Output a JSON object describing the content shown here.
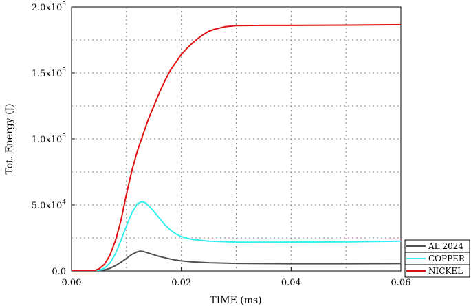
{
  "chart_data": {
    "type": "line",
    "xlabel": "TIME (ms)",
    "ylabel": "Tot. Energy (J)",
    "xlim": [
      0,
      0.06
    ],
    "ylim": [
      0,
      200000
    ],
    "grid": true,
    "legend_position": "bottom-right",
    "x_ticks": [
      {
        "value": 0,
        "label": "0.00"
      },
      {
        "value": 0.02,
        "label": "0.02"
      },
      {
        "value": 0.04,
        "label": "0.04"
      },
      {
        "value": 0.06,
        "label": "0.06"
      }
    ],
    "y_ticks": [
      {
        "value": 0,
        "label": "0.0",
        "exp": ""
      },
      {
        "value": 50000,
        "label": "5.0x10",
        "exp": "4"
      },
      {
        "value": 100000,
        "label": "1.0x10",
        "exp": "5"
      },
      {
        "value": 150000,
        "label": "1.5x10",
        "exp": "5"
      },
      {
        "value": 200000,
        "label": "2.0x10",
        "exp": "5"
      }
    ],
    "series": [
      {
        "name": "AL 2024",
        "color": "#505050",
        "points": [
          [
            0,
            0
          ],
          [
            0.004,
            0
          ],
          [
            0.005,
            200
          ],
          [
            0.006,
            800
          ],
          [
            0.007,
            2000
          ],
          [
            0.008,
            4000
          ],
          [
            0.009,
            6500
          ],
          [
            0.01,
            9500
          ],
          [
            0.011,
            12500
          ],
          [
            0.012,
            14500
          ],
          [
            0.0125,
            15000
          ],
          [
            0.013,
            14800
          ],
          [
            0.014,
            13500
          ],
          [
            0.015,
            12200
          ],
          [
            0.016,
            11000
          ],
          [
            0.017,
            10000
          ],
          [
            0.018,
            9000
          ],
          [
            0.019,
            8200
          ],
          [
            0.02,
            7600
          ],
          [
            0.022,
            6800
          ],
          [
            0.025,
            6200
          ],
          [
            0.03,
            5700
          ],
          [
            0.04,
            5400
          ],
          [
            0.05,
            5400
          ],
          [
            0.06,
            5500
          ]
        ]
      },
      {
        "name": "COPPER",
        "color": "#33f0f0",
        "points": [
          [
            0,
            0
          ],
          [
            0.004,
            0
          ],
          [
            0.005,
            500
          ],
          [
            0.006,
            2000
          ],
          [
            0.007,
            6000
          ],
          [
            0.008,
            13000
          ],
          [
            0.009,
            23000
          ],
          [
            0.01,
            34000
          ],
          [
            0.011,
            44000
          ],
          [
            0.012,
            51000
          ],
          [
            0.0128,
            52500
          ],
          [
            0.0135,
            51500
          ],
          [
            0.014,
            49500
          ],
          [
            0.015,
            45000
          ],
          [
            0.016,
            40000
          ],
          [
            0.017,
            35000
          ],
          [
            0.018,
            31000
          ],
          [
            0.019,
            28000
          ],
          [
            0.02,
            26000
          ],
          [
            0.022,
            23800
          ],
          [
            0.025,
            22500
          ],
          [
            0.03,
            21800
          ],
          [
            0.035,
            21700
          ],
          [
            0.04,
            21800
          ],
          [
            0.05,
            22000
          ],
          [
            0.06,
            22500
          ]
        ]
      },
      {
        "name": "NICKEL",
        "color": "#e01010",
        "points": [
          [
            0,
            0
          ],
          [
            0.004,
            0
          ],
          [
            0.005,
            1500
          ],
          [
            0.006,
            5000
          ],
          [
            0.007,
            12000
          ],
          [
            0.008,
            23000
          ],
          [
            0.009,
            38000
          ],
          [
            0.01,
            58000
          ],
          [
            0.011,
            76000
          ],
          [
            0.012,
            91000
          ],
          [
            0.013,
            103000
          ],
          [
            0.014,
            115000
          ],
          [
            0.015,
            125000
          ],
          [
            0.016,
            135000
          ],
          [
            0.017,
            144000
          ],
          [
            0.018,
            152000
          ],
          [
            0.019,
            158000
          ],
          [
            0.02,
            164000
          ],
          [
            0.021,
            168500
          ],
          [
            0.022,
            172500
          ],
          [
            0.023,
            176000
          ],
          [
            0.024,
            179000
          ],
          [
            0.025,
            181500
          ],
          [
            0.026,
            183000
          ],
          [
            0.027,
            184000
          ],
          [
            0.028,
            185000
          ],
          [
            0.03,
            185800
          ],
          [
            0.035,
            186000
          ],
          [
            0.04,
            186000
          ],
          [
            0.05,
            186200
          ],
          [
            0.06,
            186500
          ]
        ]
      }
    ]
  }
}
